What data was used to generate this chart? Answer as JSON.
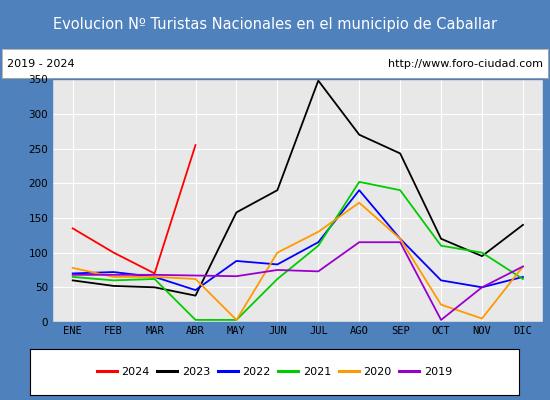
{
  "title": "Evolucion Nº Turistas Nacionales en el municipio de Caballar",
  "subtitle_left": "2019 - 2024",
  "subtitle_right": "http://www.foro-ciudad.com",
  "months": [
    "ENE",
    "FEB",
    "MAR",
    "ABR",
    "MAY",
    "JUN",
    "JUL",
    "AGO",
    "SEP",
    "OCT",
    "NOV",
    "DIC"
  ],
  "series": {
    "2024": [
      135,
      100,
      70,
      255,
      null,
      null,
      null,
      null,
      null,
      null,
      null,
      null
    ],
    "2023": [
      60,
      52,
      50,
      38,
      158,
      190,
      348,
      270,
      243,
      120,
      95,
      140
    ],
    "2022": [
      70,
      72,
      65,
      46,
      88,
      83,
      115,
      190,
      120,
      60,
      50,
      65
    ],
    "2021": [
      65,
      60,
      62,
      3,
      3,
      62,
      110,
      202,
      190,
      110,
      100,
      62
    ],
    "2020": [
      78,
      65,
      65,
      62,
      3,
      100,
      130,
      172,
      120,
      25,
      5,
      80
    ],
    "2019": [
      68,
      68,
      68,
      67,
      66,
      75,
      73,
      115,
      115,
      3,
      50,
      80
    ]
  },
  "colors": {
    "2024": "#ff0000",
    "2023": "#000000",
    "2022": "#0000ff",
    "2021": "#00cc00",
    "2020": "#ff9900",
    "2019": "#9900cc"
  },
  "ylim": [
    0,
    350
  ],
  "yticks": [
    0,
    50,
    100,
    150,
    200,
    250,
    300,
    350
  ],
  "title_bg": "#4f81bd",
  "title_color": "#ffffff",
  "plot_bg": "#e8e8e8",
  "grid_color": "#ffffff",
  "border_color": "#4f81bd",
  "legend_fontsize": 8,
  "axis_fontsize": 7.5,
  "title_fontsize": 10.5
}
